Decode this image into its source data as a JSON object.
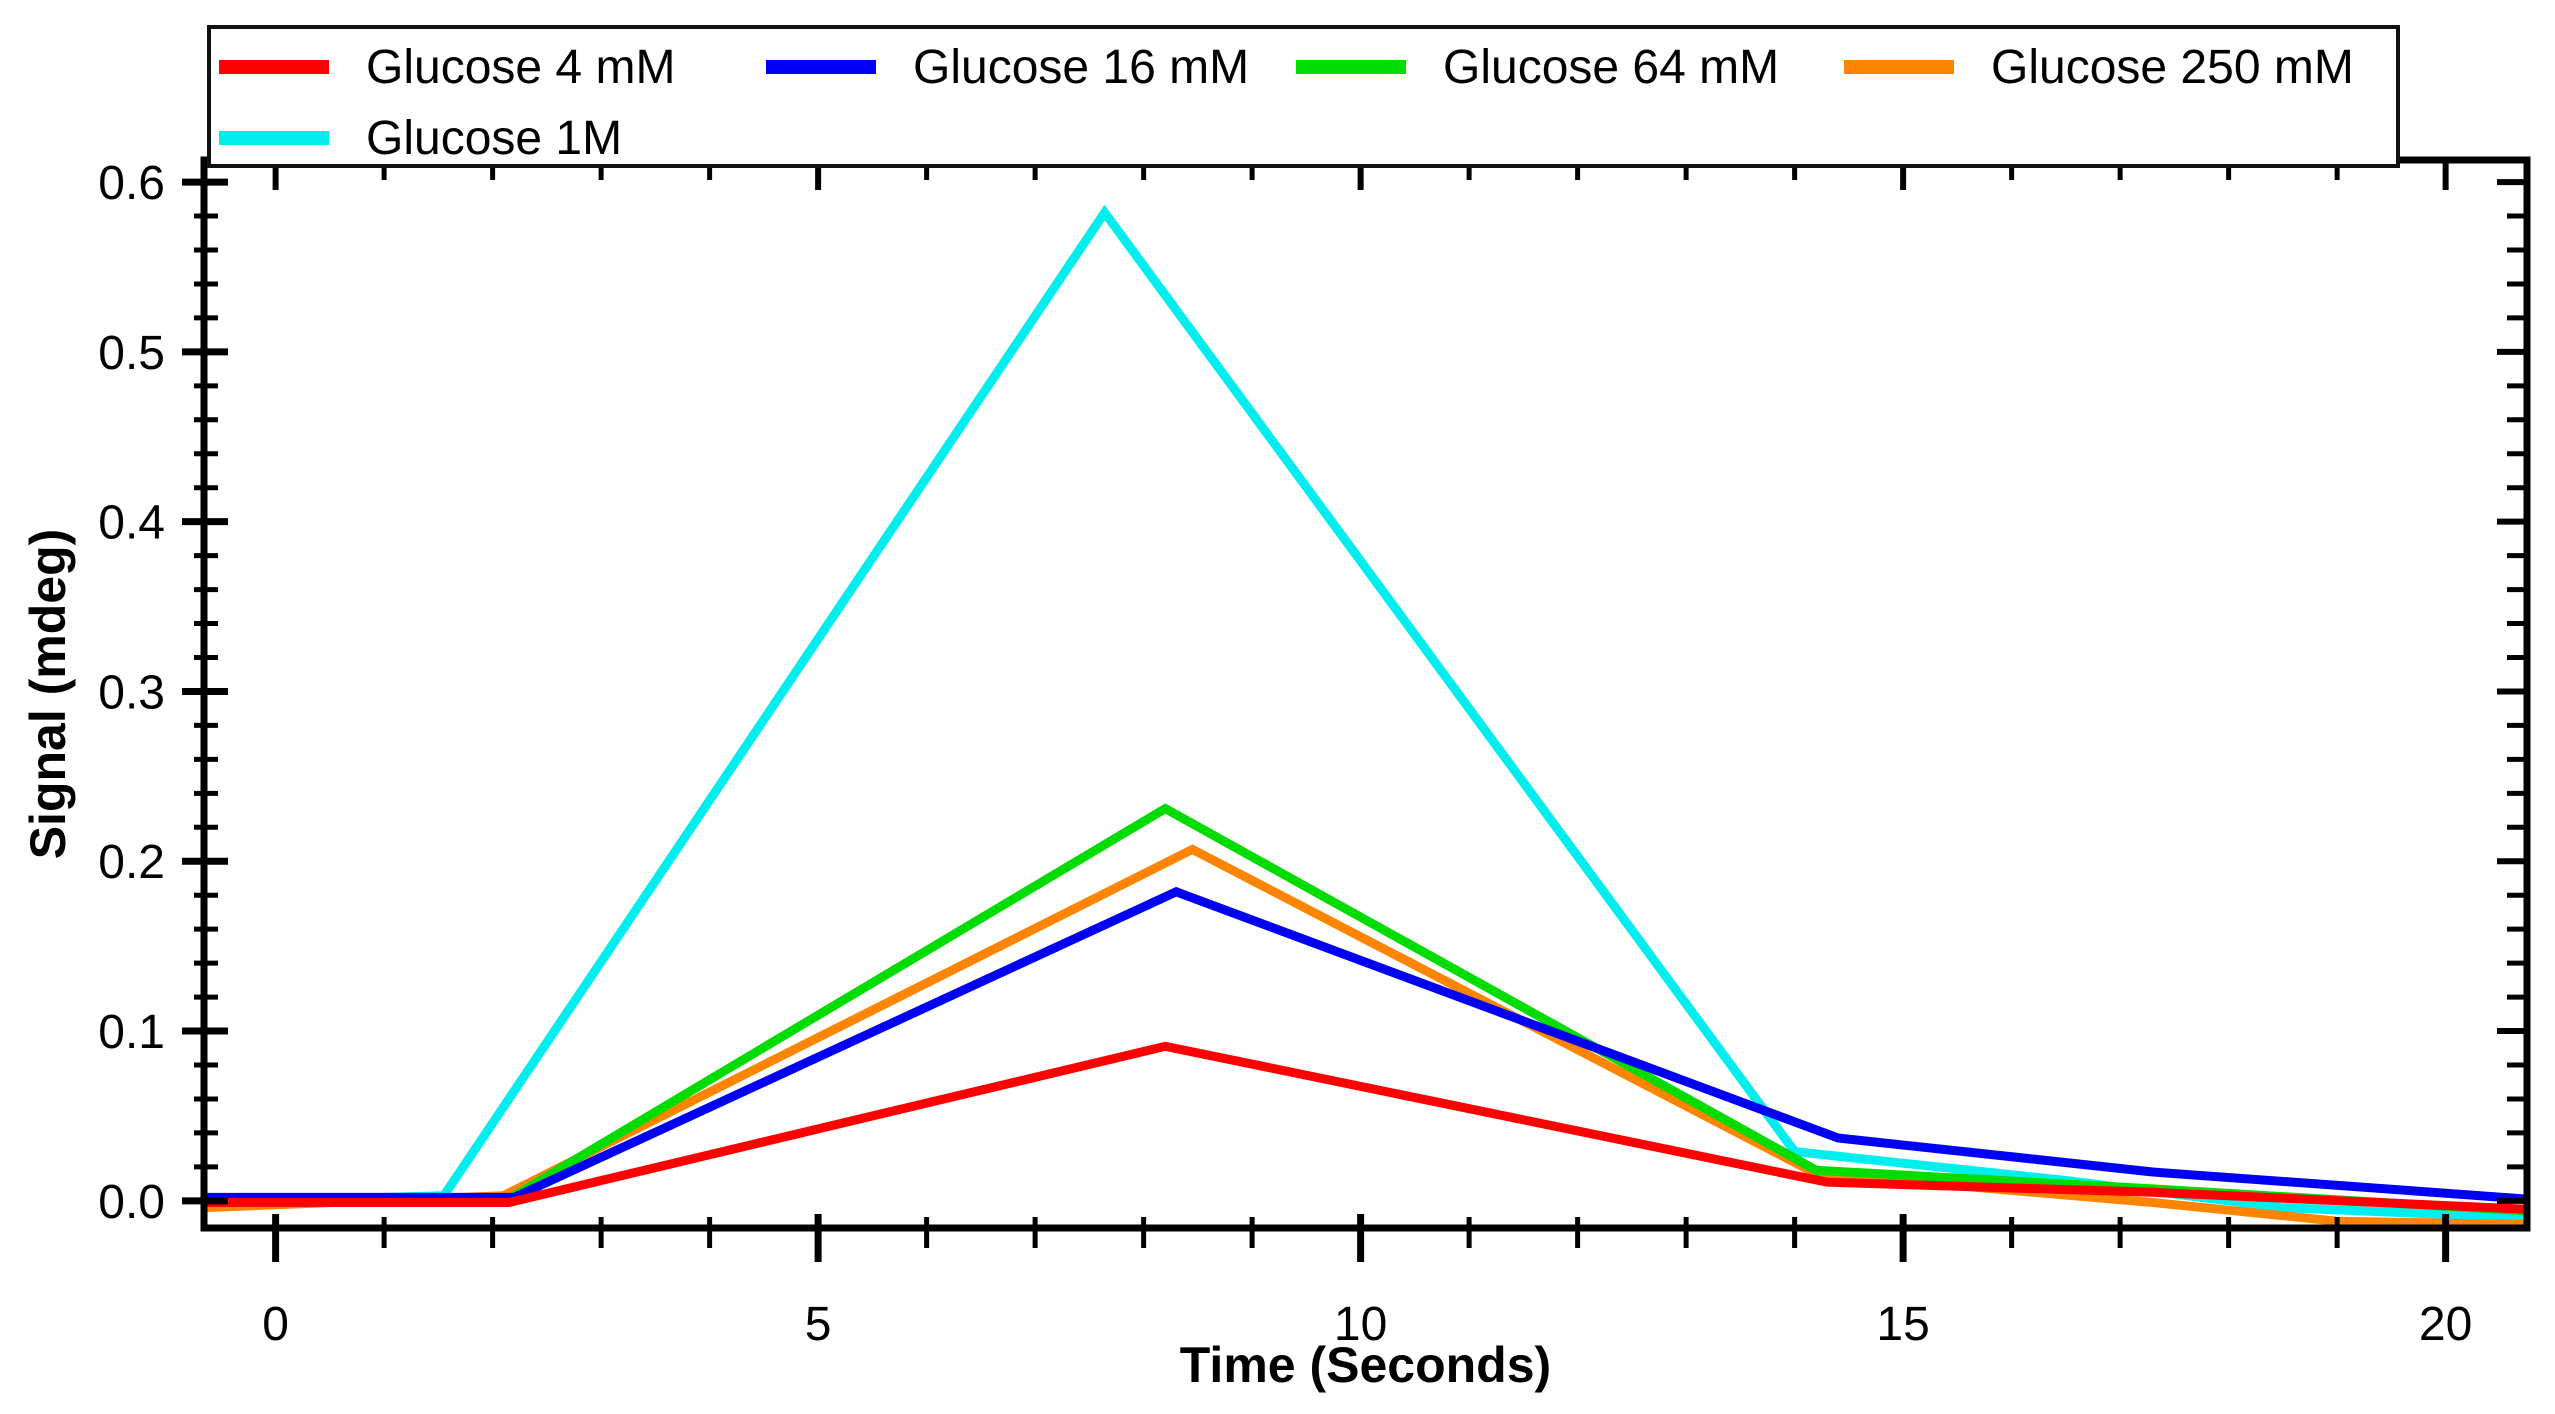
{
  "chart_data": {
    "type": "line",
    "title": "",
    "xlabel": "Time (Seconds)",
    "ylabel": "Signal (mdeg)",
    "xlim": [
      -0.66,
      20.75
    ],
    "ylim": [
      -0.016,
      0.613
    ],
    "grid": false,
    "legend_position": "top",
    "x_major_ticks": [
      0,
      5,
      10,
      15,
      20
    ],
    "x_major_labels": [
      "0",
      "5",
      "10",
      "15",
      "20"
    ],
    "x_minor_step": 1,
    "y_major_ticks": [
      0.0,
      0.1,
      0.2,
      0.3,
      0.4,
      0.5,
      0.6
    ],
    "y_major_labels": [
      "0.0",
      "0.1",
      "0.2",
      "0.3",
      "0.4",
      "0.5",
      "0.6"
    ],
    "y_minor_step": 0.02,
    "series": [
      {
        "name": "Glucose 4 mM",
        "color": "#ff0000",
        "points": [
          [
            -0.66,
            -0.001
          ],
          [
            2.15,
            -0.001
          ],
          [
            8.2,
            0.091
          ],
          [
            14.3,
            0.011
          ],
          [
            17.3,
            0.005
          ],
          [
            20.75,
            -0.005
          ]
        ]
      },
      {
        "name": "Glucose 16 mM",
        "color": "#0000f5",
        "points": [
          [
            -0.66,
            0.002
          ],
          [
            2.2,
            0.002
          ],
          [
            8.3,
            0.182
          ],
          [
            14.4,
            0.037
          ],
          [
            17.3,
            0.017
          ],
          [
            20.75,
            0.001
          ]
        ]
      },
      {
        "name": "Glucose 64 mM",
        "color": "#00dc00",
        "points": [
          [
            -0.66,
            0.001
          ],
          [
            2.15,
            0.001
          ],
          [
            8.2,
            0.231
          ],
          [
            14.2,
            0.018
          ],
          [
            17.3,
            0.007
          ],
          [
            20.75,
            -0.006
          ]
        ]
      },
      {
        "name": "Glucose 250 mM",
        "color": "#ff8400",
        "points": [
          [
            -0.66,
            -0.004
          ],
          [
            2.1,
            0.003
          ],
          [
            8.45,
            0.207
          ],
          [
            14.2,
            0.016
          ],
          [
            17.3,
            -0.001
          ],
          [
            19.0,
            -0.012
          ],
          [
            20.75,
            -0.014
          ]
        ]
      },
      {
        "name": "Glucose 1M",
        "color": "#00eeee",
        "points": [
          [
            -0.66,
            -0.001
          ],
          [
            1.55,
            0.003
          ],
          [
            7.64,
            0.582
          ],
          [
            14.0,
            0.029
          ],
          [
            16.5,
            0.012
          ],
          [
            18.5,
            -0.004
          ],
          [
            20.75,
            -0.01
          ]
        ]
      }
    ],
    "draw_order": [
      4,
      3,
      2,
      1,
      0
    ],
    "line_width": 9
  }
}
